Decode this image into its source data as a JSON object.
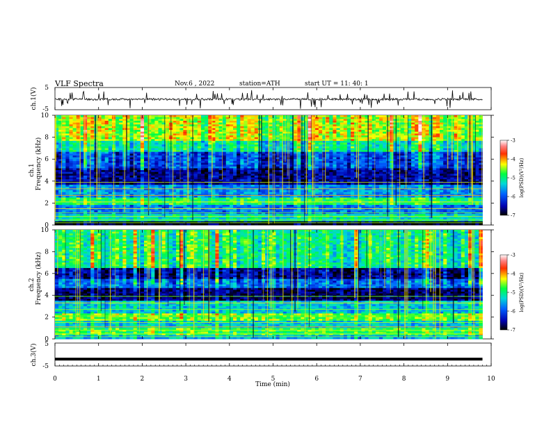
{
  "header": {
    "title": "VLF  Spectra",
    "date": "Nov.6  , 2022",
    "station": "station=ATH",
    "start": "start  UT  =    11: 40: 1"
  },
  "chart_data": [
    {
      "type": "line",
      "name": "ch1-waveform",
      "ylabel": "ch.1(V)",
      "ylim": [
        -5,
        5
      ],
      "yticks": [
        "5",
        "-5"
      ],
      "xlim": [
        0,
        10
      ],
      "x_start": 0,
      "x_end": 9.8,
      "mean_value": -0.3,
      "grid": false
    },
    {
      "type": "heatmap",
      "name": "ch1-spectrogram",
      "ylabel_top": "ch.1",
      "ylabel": "Frequency  (kHz)",
      "ylim": [
        0,
        10
      ],
      "yticks": [
        "0",
        "2",
        "4",
        "6",
        "8",
        "10"
      ],
      "xlim": [
        0,
        10
      ],
      "x_end": 9.8,
      "colorbar": {
        "label": "log(PSD)(V²/Hz)",
        "range": [
          -7,
          -3
        ],
        "ticks": [
          "-3",
          "-4",
          "-5",
          "-6",
          "-7"
        ]
      },
      "bands": [
        {
          "f": [
            0.0,
            0.3
          ],
          "logpsd": -7.0
        },
        {
          "f": [
            0.3,
            1.0
          ],
          "logpsd": -5.2
        },
        {
          "f": [
            1.0,
            1.9
          ],
          "logpsd": -5.8
        },
        {
          "f": [
            1.9,
            2.5
          ],
          "logpsd": -4.9
        },
        {
          "f": [
            2.5,
            3.6
          ],
          "logpsd": -5.7
        },
        {
          "f": [
            3.6,
            5.2
          ],
          "logpsd": -6.6
        },
        {
          "f": [
            5.2,
            6.6
          ],
          "logpsd": -6.1
        },
        {
          "f": [
            6.6,
            7.6
          ],
          "logpsd": -5.2
        },
        {
          "f": [
            7.6,
            10.0
          ],
          "logpsd": -4.5
        }
      ]
    },
    {
      "type": "heatmap",
      "name": "ch2-spectrogram",
      "ylabel_top": "ch.2",
      "ylabel": "Frequency  (kHz)",
      "ylim": [
        0,
        10
      ],
      "yticks": [
        "0",
        "2",
        "4",
        "6",
        "8",
        "10"
      ],
      "xlim": [
        0,
        10
      ],
      "x_end": 9.8,
      "colorbar": {
        "label": "log(PSD)(V²/Hz)",
        "range": [
          -7,
          -3
        ],
        "ticks": [
          "-3",
          "-4",
          "-5",
          "-6",
          "-7"
        ]
      },
      "bands": [
        {
          "f": [
            0.0,
            0.4
          ],
          "logpsd": -5.5
        },
        {
          "f": [
            0.4,
            1.0
          ],
          "logpsd": -4.8
        },
        {
          "f": [
            1.0,
            1.6
          ],
          "logpsd": -5.4
        },
        {
          "f": [
            1.6,
            2.3
          ],
          "logpsd": -4.6
        },
        {
          "f": [
            2.3,
            3.5
          ],
          "logpsd": -5.4
        },
        {
          "f": [
            3.5,
            4.6
          ],
          "logpsd": -6.7
        },
        {
          "f": [
            4.6,
            5.5
          ],
          "logpsd": -5.8
        },
        {
          "f": [
            5.5,
            6.5
          ],
          "logpsd": -6.5
        },
        {
          "f": [
            6.5,
            10.0
          ],
          "logpsd": -5.0
        }
      ]
    },
    {
      "type": "line",
      "name": "ch3-waveform",
      "ylabel": "ch.3(V)",
      "ylim": [
        -5,
        5
      ],
      "yticks": [
        "5",
        "-5"
      ],
      "xlim": [
        0,
        10
      ],
      "x_start": 0,
      "x_end": 9.8,
      "mean_value": -2.0,
      "grid": false
    }
  ],
  "xaxis": {
    "label": "Time  (min)",
    "ticks": [
      "0",
      "1",
      "2",
      "3",
      "4",
      "5",
      "6",
      "7",
      "8",
      "9",
      "10"
    ]
  }
}
